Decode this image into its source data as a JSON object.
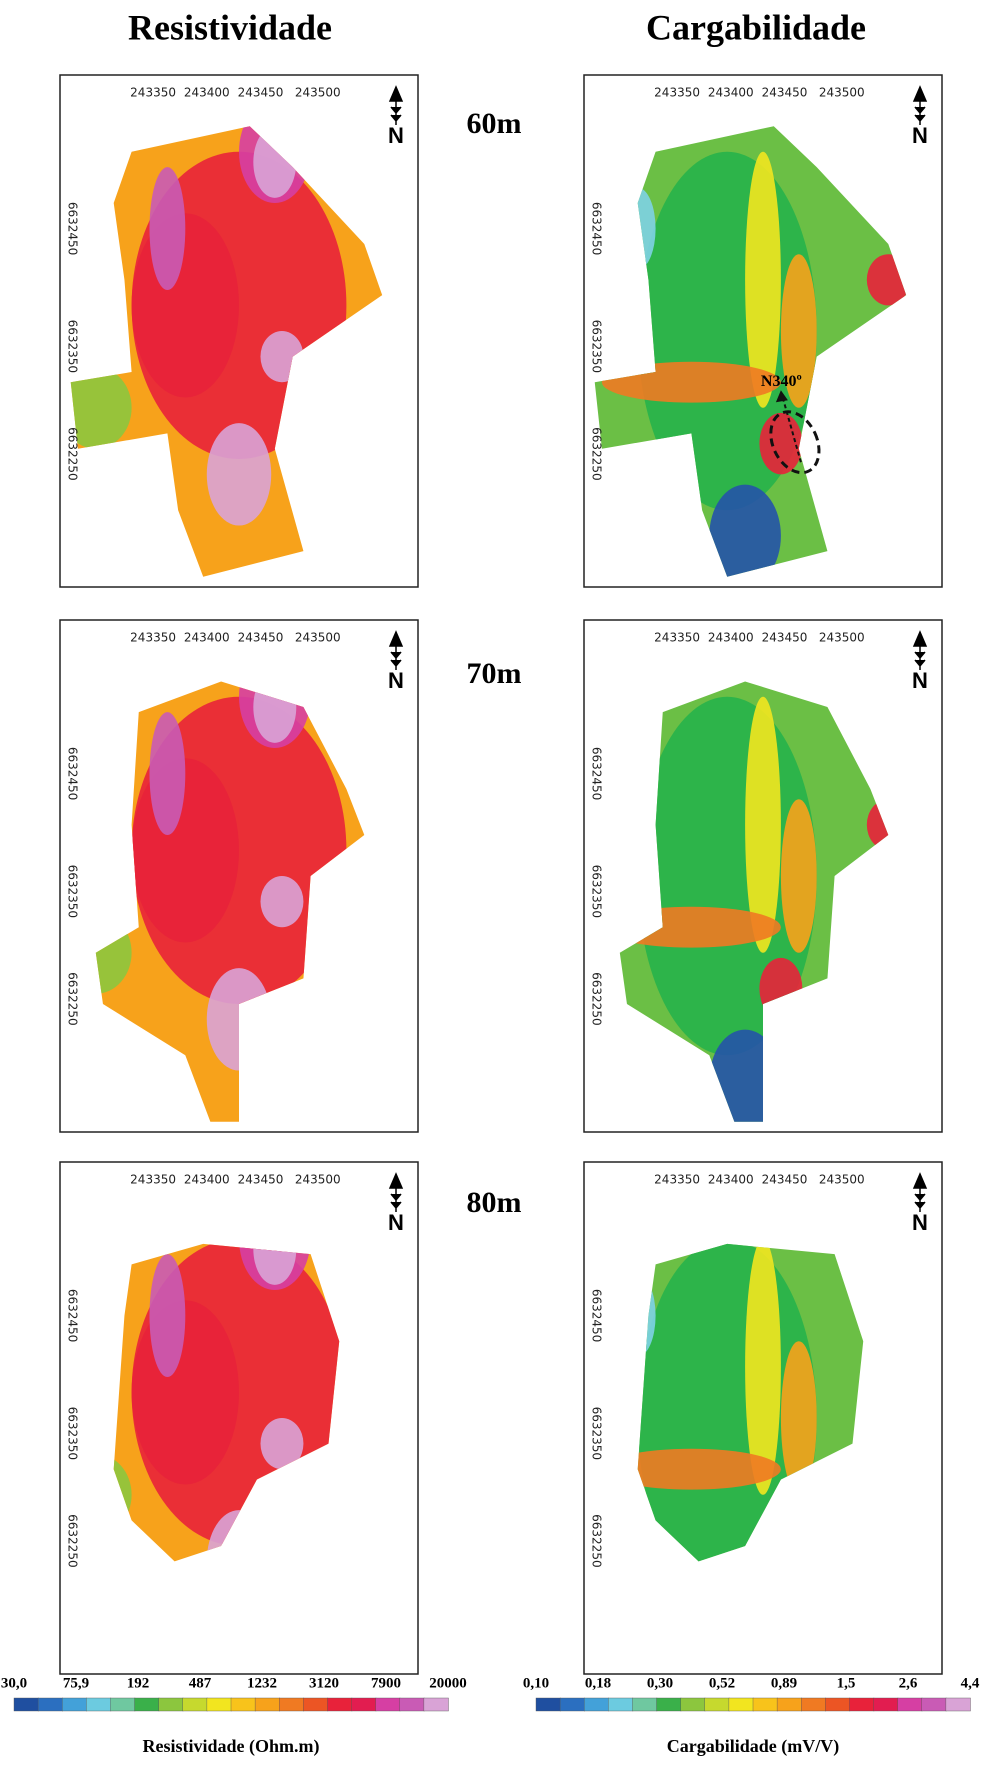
{
  "columns": [
    "Resistividade",
    "Cargabilidade"
  ],
  "depths": [
    "60m",
    "70m",
    "80m"
  ],
  "x_ticks": [
    "243350",
    "243400",
    "243450",
    "243500"
  ],
  "y_ticks": [
    "6632450",
    "6632350",
    "6632250"
  ],
  "north": "N",
  "annotation": "N340º",
  "legends": [
    {
      "title": "Resistividade (Ohm.m)",
      "labels": [
        "30,0",
        "75,9",
        "192",
        "487",
        "1232",
        "3120",
        "7900",
        "20000"
      ]
    },
    {
      "title": "Cargabilidade (mV/V)",
      "labels": [
        "0,10",
        "0,18",
        "0,30",
        "0,52",
        "0,89",
        "1,5",
        "2,6",
        "4,4"
      ]
    }
  ]
}
